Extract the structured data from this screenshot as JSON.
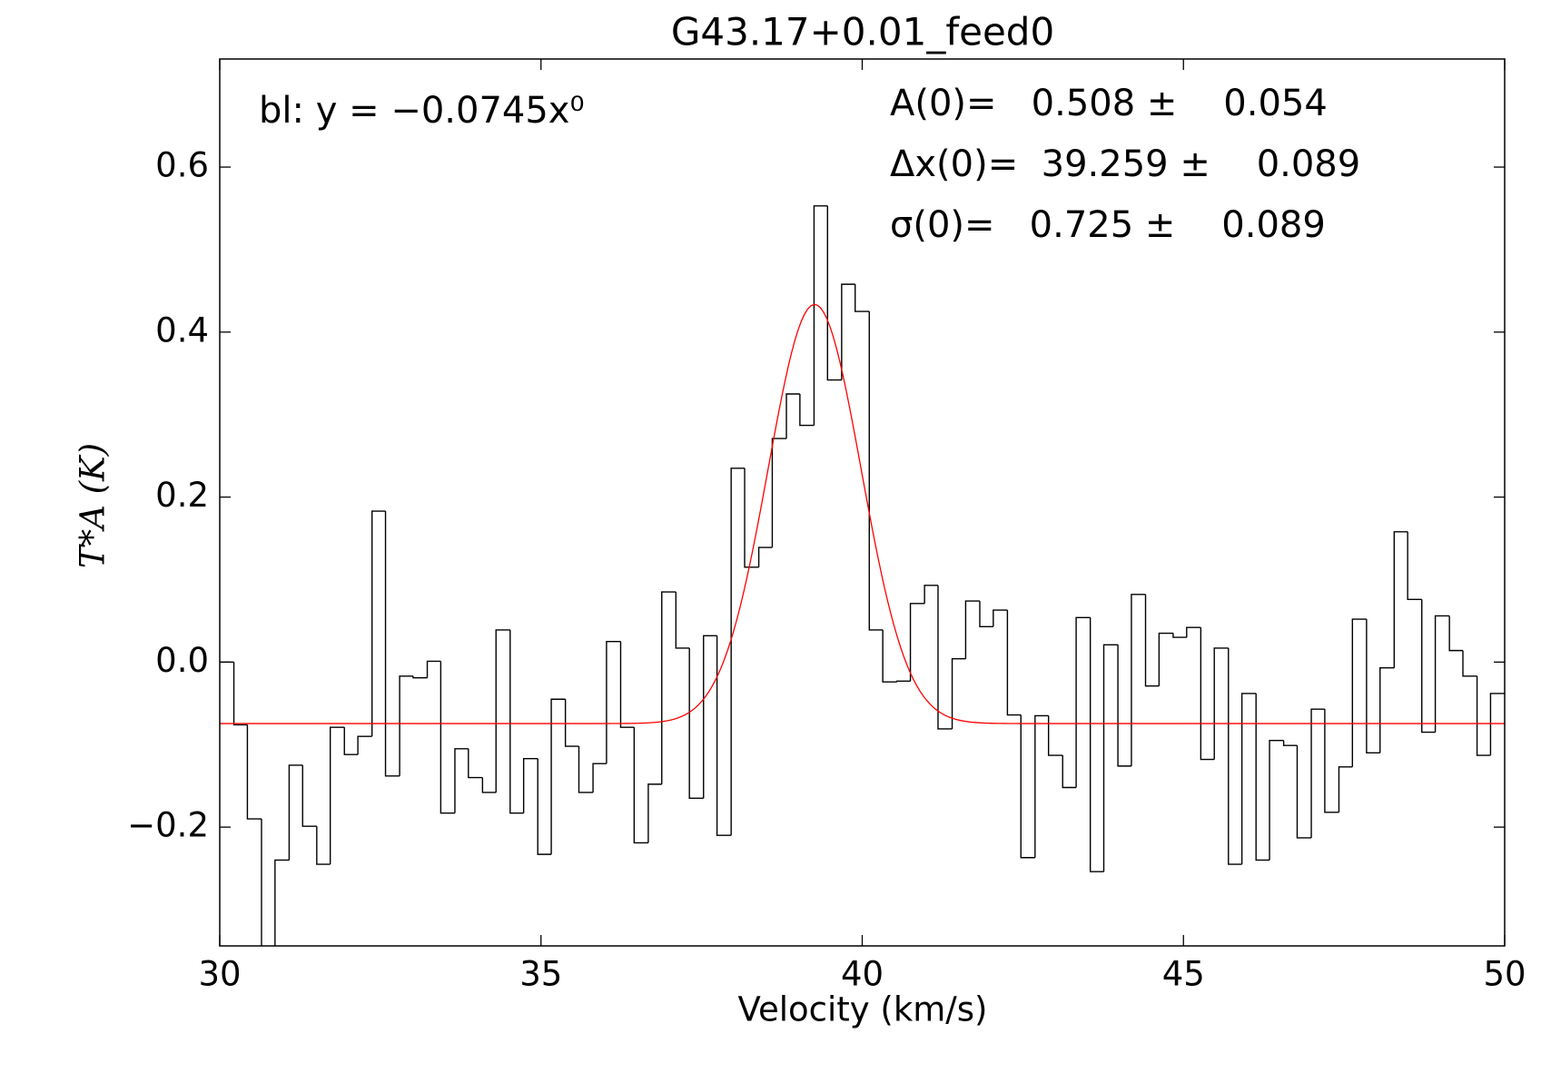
{
  "chart_data": {
    "type": "step-histogram",
    "title": "G43.17+0.01_feed0",
    "x_label": "Velocity (km/s)",
    "y_label": "T*A (K)",
    "baseline_label": "bl: y = −0.0745x⁰",
    "fit_labels": [
      "A(0)=   0.508 ±    0.054",
      "Δx(0)=  39.259 ±    0.089",
      "σ(0)=   0.725 ±    0.089"
    ],
    "bins": [
      30.0,
      30.22,
      30.43,
      30.65,
      30.86,
      31.08,
      31.29,
      31.51,
      31.72,
      31.94,
      32.15,
      32.37,
      32.58,
      32.8,
      33.01,
      33.23,
      33.44,
      33.66,
      33.87,
      34.09,
      34.3,
      34.52,
      34.73,
      34.95,
      35.16,
      35.38,
      35.59,
      35.81,
      36.02,
      36.24,
      36.45,
      36.67,
      36.88,
      37.1,
      37.31,
      37.53,
      37.74,
      37.96,
      38.17,
      38.39,
      38.6,
      38.82,
      39.03,
      39.25,
      39.46,
      39.68,
      39.89,
      40.11,
      40.32,
      40.54,
      40.75,
      40.97,
      41.18,
      41.4,
      41.61,
      41.83,
      42.04,
      42.26,
      42.47,
      42.69,
      42.9,
      43.12,
      43.33,
      43.55,
      43.76,
      43.98,
      44.19,
      44.41,
      44.62,
      44.84,
      45.05,
      45.27,
      45.48,
      45.7,
      45.91,
      46.13,
      46.34,
      46.56,
      46.77,
      46.99,
      47.2,
      47.42,
      47.63,
      47.85,
      48.06,
      48.28,
      48.49,
      48.71,
      48.92,
      49.14,
      49.35,
      49.57,
      49.78,
      50.0
    ],
    "values": [
      0.0,
      -0.076,
      -0.19,
      -0.4,
      -0.24,
      -0.125,
      -0.199,
      -0.245,
      -0.079,
      -0.112,
      -0.09,
      0.183,
      -0.138,
      -0.017,
      -0.019,
      0.001,
      -0.183,
      -0.105,
      -0.14,
      -0.158,
      0.039,
      -0.183,
      -0.117,
      -0.233,
      -0.045,
      -0.102,
      -0.158,
      -0.123,
      0.025,
      -0.079,
      -0.219,
      -0.148,
      0.085,
      0.017,
      -0.165,
      0.032,
      -0.21,
      0.235,
      0.115,
      0.139,
      0.271,
      0.325,
      0.287,
      0.553,
      0.342,
      0.458,
      0.425,
      0.039,
      -0.024,
      -0.023,
      0.071,
      0.093,
      -0.081,
      0.004,
      0.074,
      0.043,
      0.063,
      -0.064,
      -0.237,
      -0.065,
      -0.113,
      -0.152,
      0.054,
      -0.254,
      0.021,
      -0.126,
      0.082,
      -0.029,
      0.035,
      0.03,
      0.042,
      -0.118,
      0.017,
      -0.245,
      -0.038,
      -0.24,
      -0.095,
      -0.101,
      -0.213,
      -0.057,
      -0.182,
      -0.127,
      0.052,
      -0.11,
      -0.007,
      0.158,
      0.076,
      -0.085,
      0.056,
      0.014,
      -0.017,
      -0.113,
      -0.038
    ],
    "color": "#000000",
    "fit": {
      "amplitude": 0.508,
      "center": 39.259,
      "sigma": 0.725,
      "baseline": -0.0745,
      "color": "#ff0000"
    },
    "xlim": [
      30,
      50
    ],
    "ylim": [
      -0.344,
      0.731
    ],
    "xticks": [
      30,
      35,
      40,
      45,
      50
    ],
    "yticks": [
      {
        "value": -0.2,
        "label": "−0.2"
      },
      {
        "value": 0,
        "label": "0.0"
      },
      0.2,
      0.4,
      0.6
    ]
  }
}
